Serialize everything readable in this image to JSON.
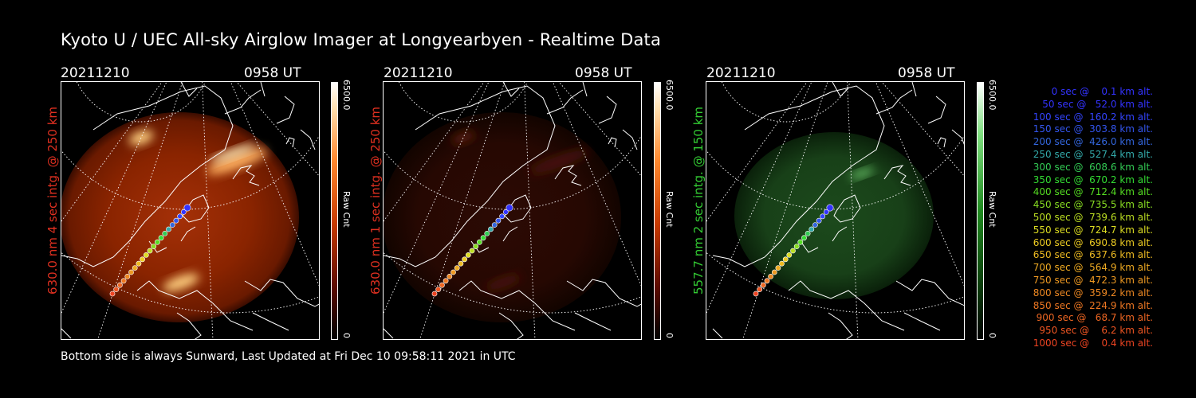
{
  "title": "Kyoto U / UEC All-sky Airglow Imager at Longyearbyen - Realtime Data",
  "panels": [
    {
      "date": "20211210",
      "time": "0958 UT",
      "side_label": "630.0 nm 4 sec intg. @ 250 km",
      "side_color": "#e03020",
      "cbar_max": "6500.0",
      "cbar_unit": "Raw Cnt",
      "cbar_min": "0",
      "palette": "red"
    },
    {
      "date": "20211210",
      "time": "0958 UT",
      "side_label": "630.0 nm 1 sec intg. @ 250 km",
      "side_color": "#e03020",
      "cbar_max": "6500.0",
      "cbar_unit": "Raw Cnt",
      "cbar_min": "0",
      "palette": "red"
    },
    {
      "date": "20211210",
      "time": "0958 UT",
      "side_label": "557.7 nm 2 sec intg. @ 150 km",
      "side_color": "#33cc33",
      "cbar_max": "6500.0",
      "cbar_unit": "Raw Cnt",
      "cbar_min": "0",
      "palette": "green"
    }
  ],
  "footer": "Bottom side is always Sunward, Last Updated at Fri Dec 10 09:58:11 2021 in UTC",
  "legend": [
    {
      "text": "   0 sec @    0.1 km alt.",
      "color": "#3333ff"
    },
    {
      "text": "  50 sec @   52.0 km alt.",
      "color": "#3333ff"
    },
    {
      "text": " 100 sec @  160.2 km alt.",
      "color": "#3344ff"
    },
    {
      "text": " 150 sec @  303.8 km alt.",
      "color": "#3355ee"
    },
    {
      "text": " 200 sec @  426.0 km alt.",
      "color": "#3366dd"
    },
    {
      "text": " 250 sec @  527.4 km alt.",
      "color": "#33aaaa"
    },
    {
      "text": " 300 sec @  608.6 km alt.",
      "color": "#33cc55"
    },
    {
      "text": " 350 sec @  670.2 km alt.",
      "color": "#33dd33"
    },
    {
      "text": " 400 sec @  712.4 km alt.",
      "color": "#55dd22"
    },
    {
      "text": " 450 sec @  735.5 km alt.",
      "color": "#88dd22"
    },
    {
      "text": " 500 sec @  739.6 km alt.",
      "color": "#bbdd22"
    },
    {
      "text": " 550 sec @  724.7 km alt.",
      "color": "#dddd22"
    },
    {
      "text": " 600 sec @  690.8 km alt.",
      "color": "#eecc22"
    },
    {
      "text": " 650 sec @  637.6 km alt.",
      "color": "#eebb22"
    },
    {
      "text": " 700 sec @  564.9 km alt.",
      "color": "#eeaa22"
    },
    {
      "text": " 750 sec @  472.3 km alt.",
      "color": "#ee9922"
    },
    {
      "text": " 800 sec @  359.2 km alt.",
      "color": "#ee8822"
    },
    {
      "text": " 850 sec @  224.9 km alt.",
      "color": "#ee7722"
    },
    {
      "text": " 900 sec @   68.7 km alt.",
      "color": "#ee6622"
    },
    {
      "text": " 950 sec @    6.2 km alt.",
      "color": "#ee5522"
    },
    {
      "text": "1000 sec @    0.4 km alt.",
      "color": "#ee4422"
    }
  ]
}
